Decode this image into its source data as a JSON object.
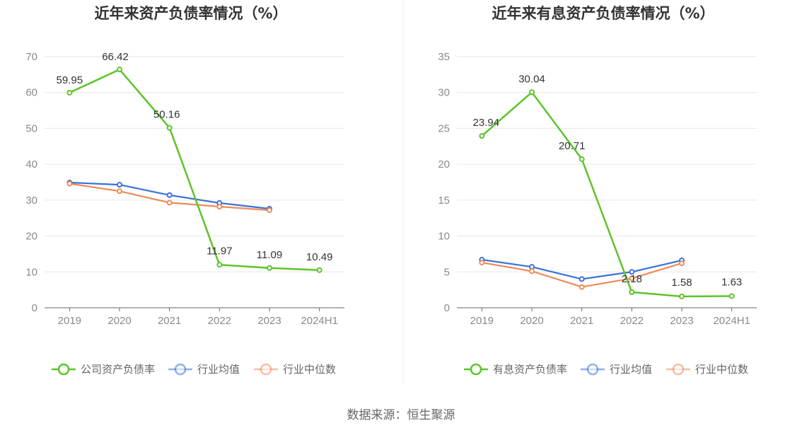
{
  "source_text": "数据来源：恒生聚源",
  "colors": {
    "company": "#5dc42a",
    "avg": "#3a72d8",
    "median": "#ef8a5a",
    "grid": "#e6e6e6",
    "axis": "#666666",
    "divider": "#eeeeee"
  },
  "chart_data": [
    {
      "type": "line",
      "title": "近年来资产负债率情况（%）",
      "categories": [
        "2019",
        "2020",
        "2021",
        "2022",
        "2023",
        "2024H1"
      ],
      "ylim": [
        0,
        70
      ],
      "yticks": [
        0,
        10,
        20,
        30,
        40,
        50,
        60,
        70
      ],
      "series": [
        {
          "name": "公司资产负债率",
          "key": "company",
          "values": [
            59.95,
            66.42,
            50.16,
            11.97,
            11.09,
            10.49
          ],
          "labels": [
            "59.95",
            "66.42",
            "50.16",
            "11.97",
            "11.09",
            "10.49"
          ]
        },
        {
          "name": "行业均值",
          "key": "avg",
          "values": [
            34.9,
            34.3,
            31.4,
            29.2,
            27.6,
            null
          ]
        },
        {
          "name": "行业中位数",
          "key": "median",
          "values": [
            34.6,
            32.5,
            29.3,
            28.2,
            27.2,
            null
          ]
        }
      ]
    },
    {
      "type": "line",
      "title": "近年来有息资产负债率情况（%）",
      "categories": [
        "2019",
        "2020",
        "2021",
        "2022",
        "2023",
        "2024H1"
      ],
      "ylim": [
        0,
        35
      ],
      "yticks": [
        0,
        5,
        10,
        15,
        20,
        25,
        30,
        35
      ],
      "series": [
        {
          "name": "有息资产负债率",
          "key": "company",
          "values": [
            23.94,
            30.04,
            20.71,
            2.18,
            1.58,
            1.63
          ],
          "labels": [
            "23.94",
            "30.04",
            "20.71",
            "2.18",
            "1.58",
            "1.63"
          ]
        },
        {
          "name": "行业均值",
          "key": "avg",
          "values": [
            6.7,
            5.7,
            4.0,
            5.0,
            6.6,
            null
          ]
        },
        {
          "name": "行业中位数",
          "key": "median",
          "values": [
            6.3,
            5.1,
            2.9,
            4.1,
            6.2,
            null
          ]
        }
      ]
    }
  ]
}
